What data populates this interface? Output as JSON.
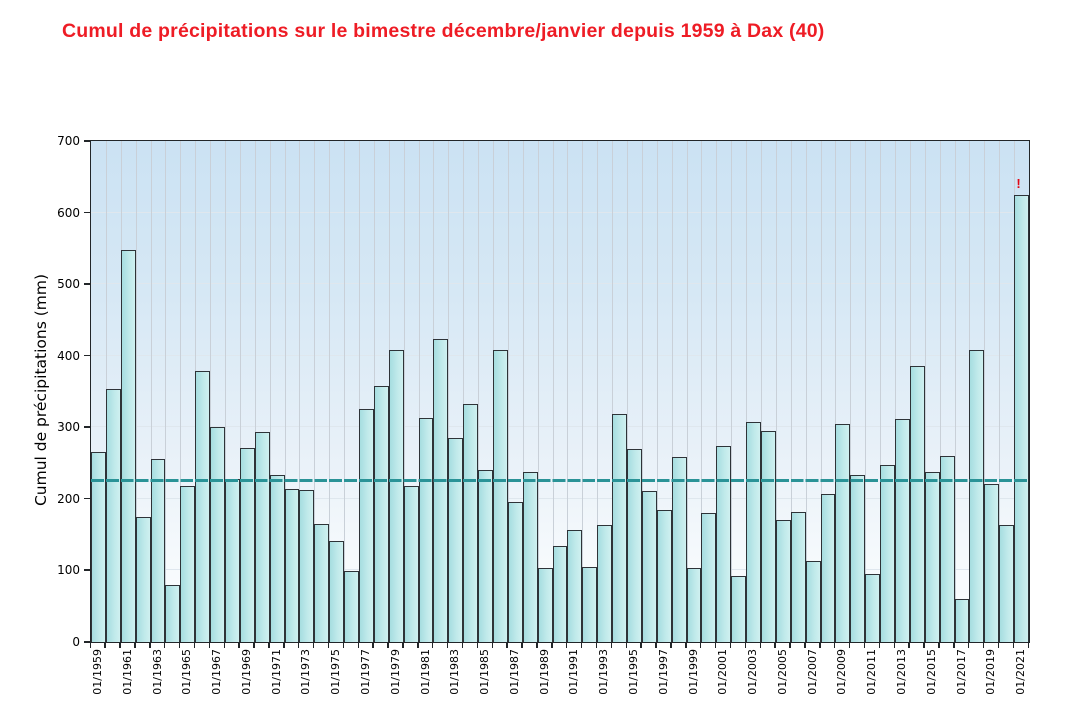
{
  "title": {
    "text": "Cumul de précipitations sur le bimestre décembre/janvier depuis 1959 à Dax (40)",
    "color": "#ee1c25"
  },
  "chart_data": {
    "type": "bar",
    "title": "Cumul de précipitations sur le bimestre décembre/janvier depuis 1959 à Dax (40)",
    "xlabel": "",
    "ylabel": "Cumul de précipitations (mm)",
    "ylim": [
      0,
      700
    ],
    "y_ticks": [
      0,
      100,
      200,
      300,
      400,
      500,
      600,
      700
    ],
    "grid": true,
    "legend": "none",
    "x": [
      1959,
      1960,
      1961,
      1962,
      1963,
      1964,
      1965,
      1966,
      1967,
      1968,
      1969,
      1970,
      1971,
      1972,
      1973,
      1974,
      1975,
      1976,
      1977,
      1978,
      1979,
      1980,
      1981,
      1982,
      1983,
      1984,
      1985,
      1986,
      1987,
      1988,
      1989,
      1990,
      1991,
      1992,
      1993,
      1994,
      1995,
      1996,
      1997,
      1998,
      1999,
      2000,
      2001,
      2002,
      2003,
      2004,
      2005,
      2006,
      2007,
      2008,
      2009,
      2010,
      2011,
      2012,
      2013,
      2014,
      2015,
      2016,
      2017,
      2018,
      2019,
      2020,
      2021
    ],
    "values": [
      265,
      353,
      548,
      175,
      256,
      80,
      218,
      378,
      300,
      228,
      271,
      293,
      234,
      214,
      212,
      165,
      141,
      99,
      325,
      358,
      408,
      218,
      313,
      423,
      285,
      332,
      240,
      408,
      195,
      237,
      104,
      134,
      156,
      105,
      163,
      318,
      270,
      211,
      184,
      259,
      104,
      180,
      274,
      92,
      307,
      295,
      170,
      182,
      113,
      207,
      305,
      233,
      95,
      248,
      312,
      385,
      238,
      260,
      60,
      408,
      221,
      163,
      625
    ],
    "x_tick_labels": [
      "01/1959",
      "01/1961",
      "01/1963",
      "01/1965",
      "01/1967",
      "01/1969",
      "01/1971",
      "01/1973",
      "01/1975",
      "01/1977",
      "01/1979",
      "01/1981",
      "01/1983",
      "01/1985",
      "01/1987",
      "01/1989",
      "01/1991",
      "01/1993",
      "01/1995",
      "01/1997",
      "01/1999",
      "01/2001",
      "01/2003",
      "01/2005",
      "01/2007",
      "01/2009",
      "01/2011",
      "01/2013",
      "01/2015",
      "01/2017",
      "01/2019",
      "01/2021"
    ],
    "x_tick_label_every": 2,
    "mean_line": {
      "value": 224,
      "color": "#2a9397",
      "style": "dashed"
    },
    "annotation": {
      "text": "!",
      "on_year": 2021,
      "color": "#e30613"
    },
    "colors": {
      "bar_fill_left": "#a6dde0",
      "bar_fill_right": "#cff0f0",
      "bar_border": "#2e3338",
      "plot_bg_top": "#cbe2f3",
      "plot_bg_bottom": "#ffffff",
      "vgrid": "#c9d0d8",
      "hgrid": "#dfe7ee",
      "axis": "#222629"
    }
  }
}
